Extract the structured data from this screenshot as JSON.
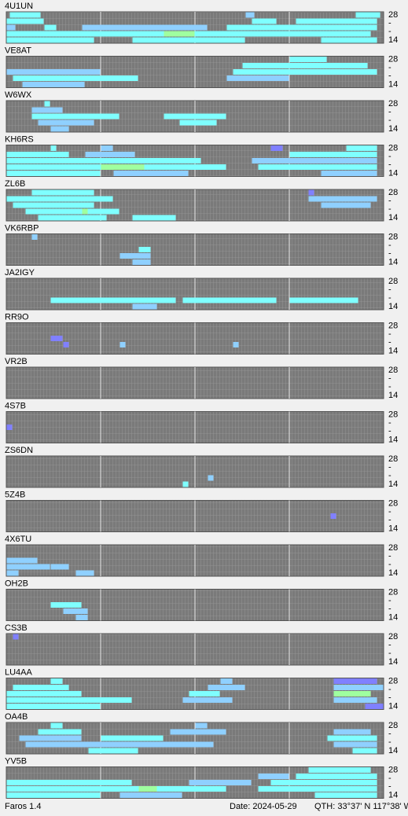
{
  "band_labels": [
    "28",
    "-",
    "-",
    "14"
  ],
  "palette": [
    "#7fffff",
    "#8fd0ff",
    "#8080ff",
    "#9fff9f"
  ],
  "footer": {
    "app": "Faros 1.4",
    "date": "Date: 2024-05-29",
    "qth": "QTH: 33°37' N  117°38' W"
  },
  "stations": [
    {
      "name": "4U1UN",
      "runs": [
        [
          0,
          1,
          10,
          0
        ],
        [
          0,
          76,
          3,
          1
        ],
        [
          0,
          111,
          8,
          0
        ],
        [
          1,
          0,
          12,
          0
        ],
        [
          1,
          78,
          8,
          0
        ],
        [
          1,
          92,
          26,
          0
        ],
        [
          2,
          0,
          3,
          1
        ],
        [
          2,
          12,
          4,
          0
        ],
        [
          2,
          24,
          40,
          1
        ],
        [
          2,
          70,
          48,
          0
        ],
        [
          3,
          0,
          116,
          0
        ],
        [
          3,
          50,
          10,
          3
        ],
        [
          4,
          0,
          28,
          0
        ],
        [
          4,
          40,
          36,
          0
        ],
        [
          4,
          100,
          18,
          0
        ]
      ]
    },
    {
      "name": "VE8AT",
      "runs": [
        [
          0,
          90,
          12,
          0
        ],
        [
          1,
          75,
          40,
          0
        ],
        [
          2,
          0,
          30,
          1
        ],
        [
          2,
          72,
          46,
          0
        ],
        [
          3,
          2,
          40,
          0
        ],
        [
          3,
          70,
          20,
          1
        ],
        [
          4,
          5,
          20,
          1
        ]
      ]
    },
    {
      "name": "W6WX",
      "runs": [
        [
          0,
          12,
          2,
          0
        ],
        [
          1,
          8,
          10,
          1
        ],
        [
          2,
          8,
          28,
          0
        ],
        [
          2,
          50,
          20,
          0
        ],
        [
          3,
          10,
          18,
          1
        ],
        [
          3,
          55,
          12,
          0
        ],
        [
          4,
          14,
          6,
          1
        ]
      ]
    },
    {
      "name": "KH6RS",
      "runs": [
        [
          0,
          14,
          2,
          0
        ],
        [
          0,
          30,
          4,
          1
        ],
        [
          0,
          84,
          4,
          2
        ],
        [
          0,
          108,
          10,
          0
        ],
        [
          1,
          0,
          20,
          0
        ],
        [
          1,
          25,
          16,
          1
        ],
        [
          1,
          90,
          28,
          0
        ],
        [
          2,
          0,
          62,
          0
        ],
        [
          2,
          78,
          40,
          1
        ],
        [
          3,
          0,
          70,
          0
        ],
        [
          3,
          30,
          14,
          3
        ],
        [
          3,
          80,
          38,
          0
        ],
        [
          4,
          0,
          30,
          0
        ],
        [
          4,
          34,
          24,
          1
        ],
        [
          4,
          100,
          18,
          1
        ]
      ]
    },
    {
      "name": "ZL6B",
      "runs": [
        [
          0,
          8,
          20,
          0
        ],
        [
          0,
          96,
          2,
          2
        ],
        [
          1,
          0,
          34,
          0
        ],
        [
          1,
          96,
          22,
          1
        ],
        [
          2,
          2,
          26,
          0
        ],
        [
          2,
          100,
          16,
          1
        ],
        [
          3,
          6,
          30,
          0
        ],
        [
          3,
          24,
          2,
          3
        ],
        [
          4,
          10,
          22,
          0
        ],
        [
          4,
          40,
          14,
          0
        ]
      ]
    },
    {
      "name": "VK6RBP",
      "runs": [
        [
          0,
          8,
          2,
          1
        ],
        [
          2,
          42,
          4,
          0
        ],
        [
          3,
          36,
          10,
          1
        ],
        [
          4,
          40,
          6,
          1
        ]
      ]
    },
    {
      "name": "JA2IGY",
      "runs": [
        [
          3,
          14,
          40,
          0
        ],
        [
          3,
          56,
          30,
          0
        ],
        [
          3,
          90,
          22,
          0
        ],
        [
          4,
          40,
          8,
          1
        ]
      ]
    },
    {
      "name": "RR9O",
      "runs": [
        [
          2,
          14,
          4,
          2
        ],
        [
          3,
          18,
          2,
          2
        ],
        [
          3,
          36,
          2,
          1
        ],
        [
          3,
          72,
          2,
          1
        ]
      ]
    },
    {
      "name": "VR2B",
      "runs": []
    },
    {
      "name": "4S7B",
      "runs": [
        [
          2,
          0,
          2,
          2
        ]
      ]
    },
    {
      "name": "ZS6DN",
      "runs": [
        [
          3,
          64,
          2,
          1
        ],
        [
          4,
          56,
          2,
          0
        ]
      ]
    },
    {
      "name": "5Z4B",
      "runs": [
        [
          2,
          103,
          2,
          2
        ]
      ]
    },
    {
      "name": "4X6TU",
      "runs": [
        [
          2,
          0,
          10,
          1
        ],
        [
          3,
          0,
          14,
          1
        ],
        [
          3,
          14,
          6,
          1
        ],
        [
          4,
          0,
          4,
          1
        ],
        [
          4,
          22,
          6,
          1
        ]
      ]
    },
    {
      "name": "OH2B",
      "runs": [
        [
          2,
          14,
          10,
          0
        ],
        [
          3,
          18,
          8,
          1
        ],
        [
          4,
          22,
          4,
          1
        ]
      ]
    },
    {
      "name": "CS3B",
      "runs": [
        [
          0,
          2,
          2,
          2
        ]
      ]
    },
    {
      "name": "LU4AA",
      "runs": [
        [
          0,
          14,
          4,
          0
        ],
        [
          0,
          68,
          4,
          1
        ],
        [
          0,
          104,
          14,
          2
        ],
        [
          1,
          2,
          18,
          0
        ],
        [
          1,
          64,
          12,
          1
        ],
        [
          1,
          104,
          16,
          1
        ],
        [
          2,
          0,
          24,
          0
        ],
        [
          2,
          58,
          10,
          0
        ],
        [
          2,
          104,
          12,
          3
        ],
        [
          3,
          0,
          40,
          0
        ],
        [
          3,
          56,
          16,
          1
        ],
        [
          3,
          104,
          14,
          1
        ],
        [
          4,
          0,
          30,
          0
        ],
        [
          4,
          114,
          6,
          2
        ]
      ]
    },
    {
      "name": "OA4B",
      "runs": [
        [
          0,
          14,
          4,
          0
        ],
        [
          0,
          60,
          4,
          1
        ],
        [
          1,
          10,
          14,
          0
        ],
        [
          1,
          52,
          18,
          1
        ],
        [
          1,
          104,
          12,
          1
        ],
        [
          2,
          4,
          20,
          1
        ],
        [
          2,
          30,
          20,
          0
        ],
        [
          2,
          102,
          16,
          0
        ],
        [
          3,
          6,
          60,
          1
        ],
        [
          3,
          104,
          14,
          1
        ],
        [
          4,
          26,
          16,
          0
        ],
        [
          4,
          110,
          8,
          0
        ]
      ]
    },
    {
      "name": "YV5B",
      "runs": [
        [
          0,
          96,
          20,
          0
        ],
        [
          1,
          80,
          10,
          1
        ],
        [
          1,
          92,
          26,
          0
        ],
        [
          2,
          0,
          40,
          0
        ],
        [
          2,
          58,
          20,
          1
        ],
        [
          2,
          84,
          34,
          0
        ],
        [
          3,
          0,
          70,
          0
        ],
        [
          3,
          42,
          6,
          3
        ],
        [
          3,
          80,
          38,
          0
        ],
        [
          4,
          0,
          30,
          0
        ],
        [
          4,
          36,
          20,
          1
        ],
        [
          4,
          98,
          20,
          0
        ]
      ]
    }
  ]
}
